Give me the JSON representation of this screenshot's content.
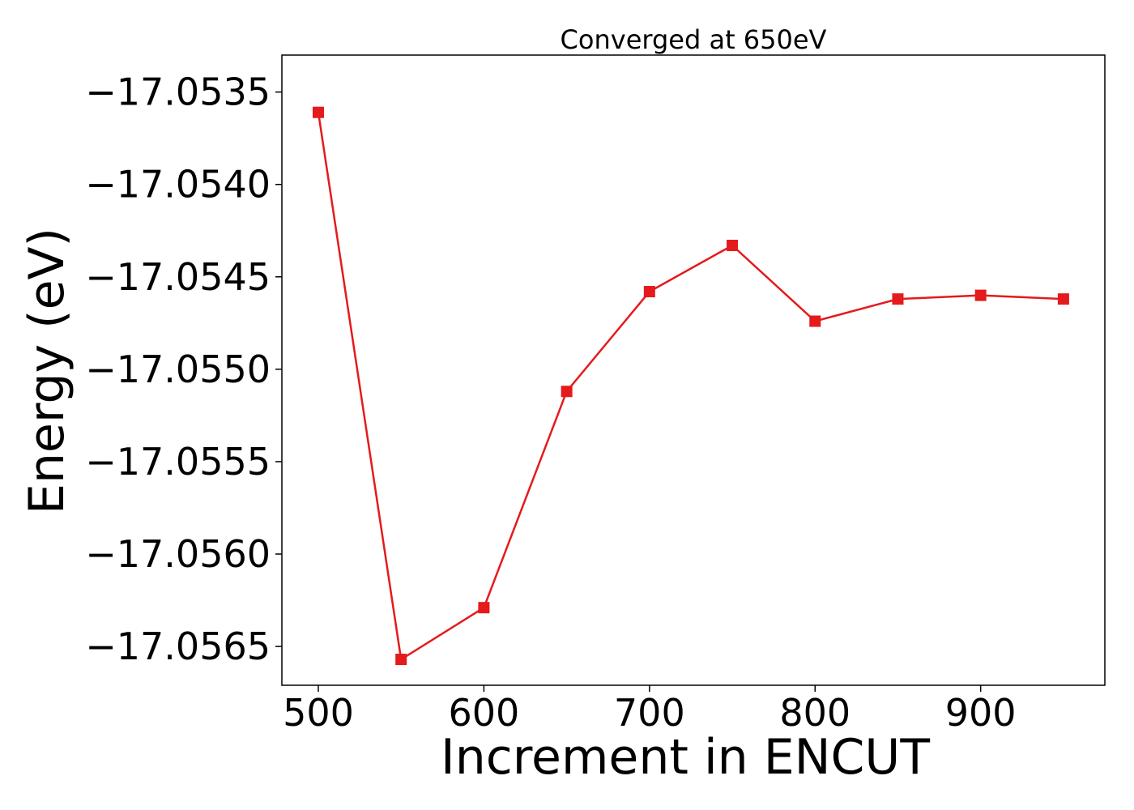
{
  "chart_data": {
    "type": "line",
    "title": "Converged at 650eV",
    "xlabel": "Increment in ENCUT",
    "ylabel": "Energy (eV)",
    "x": [
      500,
      550,
      600,
      650,
      700,
      750,
      800,
      850,
      900,
      950
    ],
    "series": [
      {
        "values": [
          -17.05361,
          -17.05657,
          -17.05629,
          -17.05512,
          -17.05458,
          -17.05433,
          -17.05474,
          -17.05462,
          -17.0546,
          -17.05462
        ],
        "color": "#e41a1c",
        "marker": "square"
      }
    ],
    "xlim": [
      478,
      975
    ],
    "ylim": [
      -17.05671,
      -17.0533
    ],
    "xticks": [
      500,
      600,
      700,
      800,
      900
    ],
    "xtick_labels": [
      "500",
      "600",
      "700",
      "800",
      "900"
    ],
    "yticks": [
      -17.0535,
      -17.054,
      -17.0545,
      -17.055,
      -17.0555,
      -17.056,
      -17.0565
    ],
    "ytick_labels": [
      "−17.0535",
      "−17.0540",
      "−17.0545",
      "−17.0550",
      "−17.0555",
      "−17.0560",
      "−17.0565"
    ],
    "grid": false,
    "legend": false
  }
}
